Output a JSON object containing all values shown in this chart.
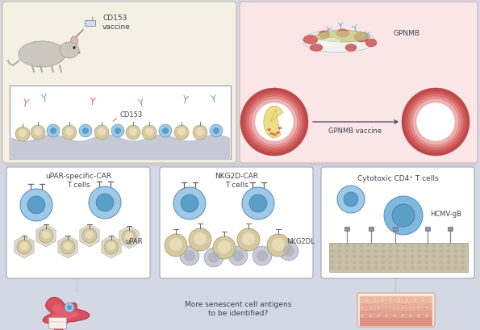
{
  "bg_main": "#d4d8e4",
  "bg_top_left": "#f4f1e4",
  "bg_top_right": "#fae6e6",
  "cell_beige": "#d4c9a0",
  "cell_beige_inner": "#e8ddb8",
  "cell_blue_light": "#9ecae8",
  "cell_blue_dark": "#5a9fc8",
  "cell_grey_light": "#c8cad4",
  "cell_grey_dark": "#a8aab8",
  "tissue_red_outer": "#cc5555",
  "tissue_red_mid": "#dd7777",
  "tissue_red_inner": "#eeaaaa",
  "tissue_red_innermost": "#f8d8d8",
  "plaque_yellow": "#eedd88",
  "antibody_blue": "#6aabe8",
  "antibody_red": "#e87878",
  "stem_color": "#9090a8",
  "arrow_dark": "#303050",
  "text_color": "#404050",
  "panel_border": "#a0a4b8",
  "tissue_grey": "#b8bcc8",
  "tissue_fill": "#c4c8d4",
  "white": "#ffffff",
  "mouse_body": "#ccc8c0",
  "organ_red": "#d85858",
  "skin_pink": "#f0c8b8",
  "skin_red_line": "#d89090",
  "needle_grey": "#888890",
  "hex_bg": "#dcdad0",
  "hex_border": "#b8b4a0",
  "labels": {
    "cd153_vaccine": "CD153\nvaccine",
    "cd153": "CD153",
    "gpnmb": "GPNMB",
    "gpnmb_vaccine": "GPNMB vaccine",
    "upar_car": "uPAR-specific-CAR\nT cells",
    "upar": "uPAR",
    "nkg2d_car": "NKG2D-CAR\nT cells",
    "nkg2dl": "NKG2DL",
    "cytotoxic": "Cytotoxic CD4⁺ T cells",
    "hcmv": "HCMV-gB",
    "more_antigens": "More senescent cell antigens\nto be identified?"
  }
}
